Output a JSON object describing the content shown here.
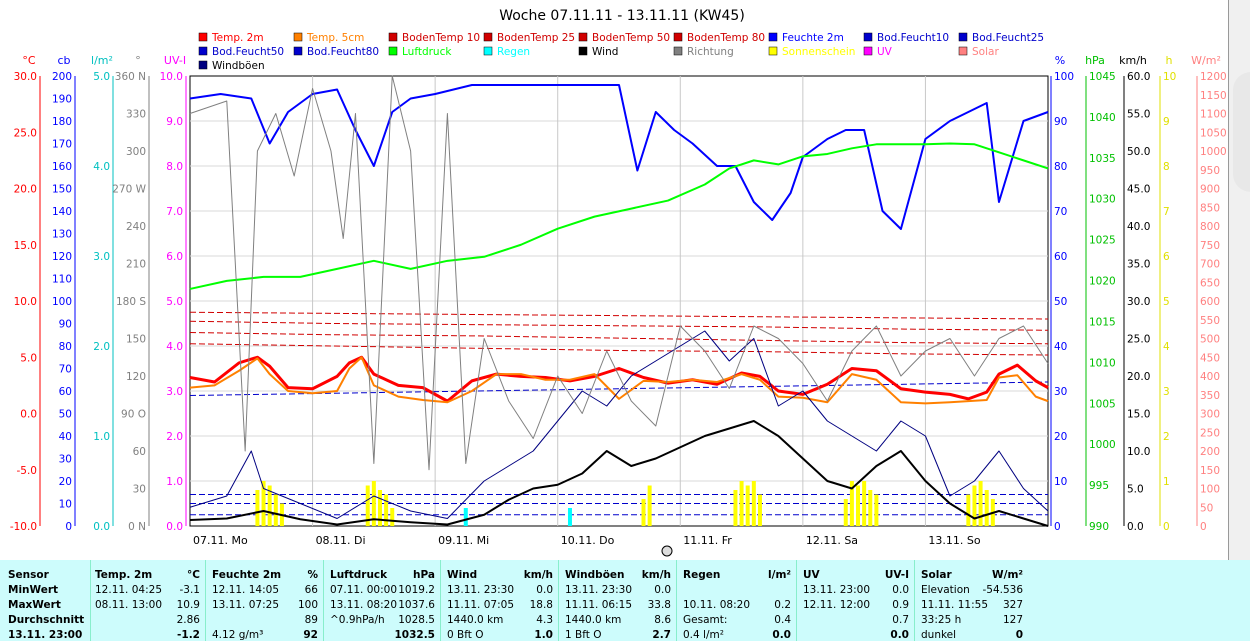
{
  "title": "Woche 07.11.11 - 13.11.11 (KW45)",
  "legend": [
    {
      "label": "Temp. 2m",
      "color": "#ff0000"
    },
    {
      "label": "Temp. 5cm",
      "color": "#ff8000"
    },
    {
      "label": "BodenTemp 10",
      "color": "#d00000"
    },
    {
      "label": "BodenTemp 25",
      "color": "#d00000"
    },
    {
      "label": "BodenTemp 50",
      "color": "#d00000"
    },
    {
      "label": "BodenTemp 80",
      "color": "#d00000"
    },
    {
      "label": "Feuchte 2m",
      "color": "#0000ff"
    },
    {
      "label": "Bod.Feucht10",
      "color": "#0000cc"
    },
    {
      "label": "Bod.Feucht25",
      "color": "#0000cc"
    },
    {
      "label": "Bod.Feucht50",
      "color": "#0000cc"
    },
    {
      "label": "Bod.Feucht80",
      "color": "#0000cc"
    },
    {
      "label": "Luftdruck",
      "color": "#00ff00"
    },
    {
      "label": "Regen",
      "color": "#00ffff"
    },
    {
      "label": "Wind",
      "color": "#000000"
    },
    {
      "label": "Richtung",
      "color": "#808080"
    },
    {
      "label": "Sonnenschein",
      "color": "#ffff00"
    },
    {
      "label": "UV",
      "color": "#ff00ff"
    },
    {
      "label": "Solar",
      "color": "#ff8080"
    },
    {
      "label": "Windböen",
      "color": "#000080"
    }
  ],
  "chart_data": {
    "type": "line",
    "title": "Woche 07.11.11 - 13.11.11 (KW45)",
    "x_categories": [
      "07.11. Mo",
      "08.11. Di",
      "09.11. Mi",
      "10.11. Do",
      "11.11. Fr",
      "12.11. Sa",
      "13.11. So"
    ],
    "axes": {
      "temp_c": {
        "unit": "°C",
        "min": -10,
        "max": 30,
        "ticks": [
          "30.0",
          "25.0",
          "20.0",
          "15.0",
          "10.0",
          "5.0",
          "0.0",
          "-5.0",
          "-10.0"
        ],
        "color": "#ff0000"
      },
      "cb": {
        "unit": "cb",
        "min": 0,
        "max": 200,
        "ticks": [
          "200",
          "190",
          "180",
          "170",
          "160",
          "150",
          "140",
          "130",
          "120",
          "110",
          "100",
          "90",
          "80",
          "70",
          "60",
          "50",
          "40",
          "30",
          "20",
          "10",
          "0"
        ],
        "color": "#0000ff"
      },
      "rain": {
        "unit": "l/m²",
        "min": 0,
        "max": 5,
        "ticks": [
          "5.0",
          "4.0",
          "3.0",
          "2.0",
          "1.0",
          "0.0"
        ],
        "color": "#00c0c0"
      },
      "direction": {
        "unit": "°",
        "min": 0,
        "max": 360,
        "ticks": [
          "360 N",
          "330",
          "300",
          "270 W",
          "240",
          "210",
          "180 S",
          "150",
          "120",
          "90 O",
          "60",
          "30",
          "0 N"
        ],
        "color": "#808080"
      },
      "uv": {
        "unit": "UV-I",
        "min": 0,
        "max": 10,
        "ticks": [
          "10.0",
          "9.0",
          "8.0",
          "7.0",
          "6.0",
          "5.0",
          "4.0",
          "3.0",
          "2.0",
          "1.0",
          "0.0"
        ],
        "color": "#ff00ff"
      },
      "humidity": {
        "unit": "%",
        "min": 0,
        "max": 100,
        "ticks": [
          "100",
          "90",
          "80",
          "70",
          "60",
          "50",
          "40",
          "30",
          "20",
          "10",
          "0"
        ],
        "color": "#0000ff"
      },
      "pressure": {
        "unit": "hPa",
        "min": 990,
        "max": 1046,
        "ticks": [
          "1045",
          "1040",
          "1035",
          "1030",
          "1025",
          "1020",
          "1015",
          "1010",
          "1005",
          "1000",
          "995",
          "990"
        ],
        "color": "#00c000"
      },
      "wind": {
        "unit": "km/h",
        "min": 0,
        "max": 60,
        "ticks": [
          "60.0",
          "55.0",
          "50.0",
          "45.0",
          "40.0",
          "35.0",
          "30.0",
          "25.0",
          "20.0",
          "15.0",
          "10.0",
          "5.0",
          "0.0"
        ],
        "color": "#000000"
      },
      "sun": {
        "unit": "h",
        "min": 0,
        "max": 10,
        "ticks": [
          "10",
          "9",
          "8",
          "7",
          "6",
          "5",
          "4",
          "3",
          "2",
          "1",
          "0"
        ],
        "color": "#e0e000"
      },
      "solar": {
        "unit": "W/m²",
        "min": 0,
        "max": 1200,
        "ticks": [
          "1200",
          "1150",
          "1100",
          "1050",
          "1000",
          "950",
          "900",
          "850",
          "800",
          "750",
          "700",
          "650",
          "600",
          "550",
          "500",
          "450",
          "400",
          "350",
          "300",
          "250",
          "200",
          "150",
          "100",
          "50",
          "0"
        ],
        "color": "#ff8080"
      }
    },
    "series": [
      {
        "name": "Temp. 2m",
        "axis": "temp_c",
        "color": "#ff0000",
        "width": 3,
        "x": [
          0,
          0.2,
          0.4,
          0.55,
          0.65,
          0.8,
          1.0,
          1.2,
          1.3,
          1.4,
          1.5,
          1.7,
          1.9,
          2.1,
          2.3,
          2.5,
          2.7,
          2.9,
          3.1,
          3.3,
          3.5,
          3.7,
          3.9,
          4.1,
          4.3,
          4.5,
          4.65,
          4.8,
          5.0,
          5.2,
          5.4,
          5.6,
          5.8,
          6.0,
          6.2,
          6.35,
          6.5,
          6.6,
          6.75,
          6.9,
          7.0
        ],
        "y": [
          3.2,
          2.8,
          4.5,
          5.0,
          4.2,
          2.3,
          2.2,
          3.3,
          4.5,
          5.0,
          3.5,
          2.5,
          2.3,
          1.1,
          2.9,
          3.5,
          3.3,
          3.2,
          2.9,
          3.3,
          4.0,
          3.2,
          2.7,
          3.0,
          2.6,
          3.6,
          3.3,
          2.0,
          1.7,
          2.6,
          4.0,
          3.8,
          2.2,
          1.9,
          1.7,
          1.3,
          1.9,
          3.5,
          4.3,
          2.9,
          2.3
        ]
      },
      {
        "name": "Temp. 5cm",
        "axis": "temp_c",
        "color": "#ff8000",
        "width": 2,
        "x": [
          0,
          0.2,
          0.4,
          0.55,
          0.65,
          0.8,
          1.0,
          1.2,
          1.3,
          1.4,
          1.5,
          1.7,
          1.9,
          2.1,
          2.3,
          2.5,
          2.7,
          2.9,
          3.1,
          3.3,
          3.5,
          3.7,
          3.9,
          4.1,
          4.3,
          4.5,
          4.65,
          4.8,
          5.0,
          5.2,
          5.4,
          5.6,
          5.8,
          6.0,
          6.2,
          6.35,
          6.5,
          6.6,
          6.75,
          6.9,
          7.0
        ],
        "y": [
          2.3,
          2.5,
          3.8,
          4.9,
          3.5,
          2.0,
          1.8,
          2.0,
          4.0,
          5.0,
          2.5,
          1.5,
          1.2,
          1.0,
          2.0,
          3.5,
          3.5,
          3.0,
          3.0,
          3.5,
          1.3,
          2.9,
          2.8,
          3.0,
          2.8,
          3.5,
          3.0,
          1.5,
          1.4,
          1.0,
          3.5,
          3.0,
          1.0,
          0.9,
          1.0,
          1.1,
          1.2,
          3.2,
          3.4,
          1.5,
          1.1
        ]
      },
      {
        "name": "Feuchte 2m",
        "axis": "humidity",
        "color": "#0000ff",
        "width": 2,
        "x": [
          0,
          0.25,
          0.5,
          0.65,
          0.8,
          1.0,
          1.2,
          1.35,
          1.5,
          1.65,
          1.8,
          2.0,
          2.3,
          2.6,
          2.9,
          3.2,
          3.5,
          3.65,
          3.8,
          3.95,
          4.1,
          4.3,
          4.45,
          4.6,
          4.75,
          4.9,
          5.0,
          5.1,
          5.2,
          5.35,
          5.5,
          5.65,
          5.8,
          6.0,
          6.2,
          6.35,
          6.5,
          6.6,
          6.8,
          7.0
        ],
        "y": [
          95,
          96,
          95,
          85,
          92,
          96,
          97,
          88,
          80,
          92,
          95,
          96,
          98,
          98,
          98,
          98,
          98,
          79,
          92,
          88,
          85,
          80,
          80,
          72,
          68,
          74,
          82,
          84,
          86,
          88,
          88,
          70,
          66,
          86,
          90,
          92,
          94,
          72,
          90,
          92
        ]
      },
      {
        "name": "Luftdruck",
        "axis": "pressure",
        "color": "#00ff00",
        "width": 2,
        "x": [
          0,
          0.3,
          0.6,
          0.9,
          1.2,
          1.5,
          1.8,
          2.1,
          2.4,
          2.7,
          3.0,
          3.3,
          3.6,
          3.9,
          4.2,
          4.4,
          4.6,
          4.8,
          5.0,
          5.2,
          5.4,
          5.6,
          5.8,
          6.0,
          6.2,
          6.4,
          6.6,
          6.8,
          7.0
        ],
        "y": [
          1019.5,
          1020.5,
          1021,
          1021,
          1022,
          1023,
          1022,
          1023,
          1023.5,
          1025,
          1027,
          1028.5,
          1029.5,
          1030.5,
          1032.5,
          1034.5,
          1035.5,
          1035,
          1036,
          1036.3,
          1037,
          1037.5,
          1037.5,
          1037.5,
          1037.6,
          1037.5,
          1036.5,
          1035.5,
          1034.5
        ]
      },
      {
        "name": "Wind",
        "axis": "wind",
        "color": "#000000",
        "width": 2,
        "x": [
          0,
          0.3,
          0.6,
          0.9,
          1.2,
          1.5,
          1.8,
          2.1,
          2.4,
          2.6,
          2.8,
          3.0,
          3.2,
          3.4,
          3.6,
          3.8,
          4.0,
          4.2,
          4.4,
          4.6,
          4.8,
          5.0,
          5.2,
          5.4,
          5.6,
          5.8,
          6.0,
          6.2,
          6.4,
          6.6,
          6.8,
          7.0
        ],
        "y": [
          0.8,
          1.0,
          2.0,
          0.9,
          0.2,
          0.9,
          0.5,
          0.2,
          1.5,
          3.5,
          5.0,
          5.5,
          7.0,
          10.0,
          8.0,
          9.0,
          10.5,
          12.0,
          13.0,
          14.0,
          12.0,
          9.0,
          6.0,
          5.0,
          8.0,
          10.0,
          6.0,
          3.0,
          1.0,
          2.0,
          1.0,
          0.0
        ]
      },
      {
        "name": "Windböen",
        "axis": "wind",
        "color": "#000080",
        "width": 1,
        "x": [
          0,
          0.3,
          0.5,
          0.6,
          0.9,
          1.2,
          1.5,
          1.8,
          2.1,
          2.4,
          2.6,
          2.8,
          3.0,
          3.2,
          3.4,
          3.6,
          3.8,
          4.0,
          4.2,
          4.4,
          4.6,
          4.8,
          5.0,
          5.2,
          5.4,
          5.6,
          5.8,
          6.0,
          6.2,
          6.4,
          6.6,
          6.8,
          7.0
        ],
        "y": [
          2.5,
          4.0,
          10.0,
          5.0,
          3.0,
          1.0,
          4.0,
          2.0,
          1.0,
          6.0,
          8.0,
          10.0,
          14.0,
          18.0,
          16.0,
          20.0,
          22.0,
          24.0,
          26.0,
          22.0,
          25.0,
          16.0,
          18.0,
          14.0,
          12.0,
          10.0,
          14.0,
          12.0,
          4.0,
          6.0,
          10.0,
          5.0,
          2.0
        ]
      },
      {
        "name": "Richtung",
        "axis": "direction",
        "color": "#808080",
        "width": 1,
        "x": [
          0,
          0.3,
          0.45,
          0.55,
          0.7,
          0.85,
          1.0,
          1.15,
          1.25,
          1.35,
          1.5,
          1.65,
          1.8,
          1.95,
          2.1,
          2.25,
          2.4,
          2.6,
          2.8,
          3.0,
          3.2,
          3.4,
          3.6,
          3.8,
          4.0,
          4.2,
          4.4,
          4.6,
          4.8,
          5.0,
          5.2,
          5.4,
          5.6,
          5.8,
          6.0,
          6.2,
          6.4,
          6.6,
          6.8,
          7.0
        ],
        "y": [
          330,
          340,
          60,
          300,
          330,
          280,
          350,
          300,
          230,
          330,
          50,
          360,
          300,
          45,
          330,
          50,
          150,
          100,
          70,
          120,
          90,
          140,
          100,
          80,
          160,
          140,
          110,
          160,
          150,
          130,
          100,
          140,
          160,
          120,
          140,
          150,
          120,
          150,
          160,
          130
        ]
      }
    ],
    "bars": [
      {
        "name": "Sonnenschein",
        "axis": "sun",
        "color": "#ffff00",
        "x": [
          0.55,
          0.6,
          0.65,
          0.7,
          0.75,
          1.45,
          1.5,
          1.55,
          1.6,
          1.65,
          3.7,
          3.75,
          4.45,
          4.5,
          4.55,
          4.6,
          4.65,
          5.35,
          5.4,
          5.45,
          5.5,
          5.55,
          5.6,
          6.35,
          6.4,
          6.45,
          6.5,
          6.55
        ],
        "y": [
          0.8,
          1.0,
          0.9,
          0.7,
          0.5,
          0.9,
          1.0,
          0.8,
          0.7,
          0.4,
          0.6,
          0.9,
          0.8,
          1.0,
          0.9,
          1.0,
          0.7,
          0.6,
          1.0,
          0.9,
          1.0,
          0.8,
          0.7,
          0.7,
          0.9,
          1.0,
          0.8,
          0.6
        ]
      },
      {
        "name": "Regen",
        "axis": "rain",
        "color": "#00ffff",
        "x": [
          2.25,
          3.1
        ],
        "y": [
          0.2,
          0.2
        ]
      }
    ],
    "reference_lines": [
      {
        "name": "BodenTemp 10",
        "axis": "temp_c",
        "color": "#d00000",
        "values": [
          6.2,
          6.0,
          5.8,
          5.6,
          5.5,
          5.3,
          5.2
        ]
      },
      {
        "name": "BodenTemp 25",
        "axis": "temp_c",
        "color": "#d00000",
        "values": [
          7.2,
          7.0,
          6.9,
          6.7,
          6.5,
          6.3,
          6.2
        ]
      },
      {
        "name": "BodenTemp 50",
        "axis": "temp_c",
        "color": "#d00000",
        "values": [
          8.2,
          8.0,
          7.9,
          7.8,
          7.7,
          7.5,
          7.4
        ]
      },
      {
        "name": "BodenTemp 80",
        "axis": "temp_c",
        "color": "#d00000",
        "values": [
          9.0,
          8.9,
          8.8,
          8.7,
          8.6,
          8.5,
          8.4
        ]
      },
      {
        "name": "Bod.Feucht10",
        "axis": "humidity",
        "color": "#0000cc",
        "values": [
          29,
          29.5,
          30,
          30.5,
          31,
          31.5,
          32
        ]
      },
      {
        "name": "Bod.Feucht25",
        "axis": "humidity",
        "color": "#0000cc",
        "values": [
          7,
          7,
          7,
          7,
          7,
          7,
          7
        ]
      },
      {
        "name": "Bod.Feucht50",
        "axis": "humidity",
        "color": "#0000cc",
        "values": [
          5,
          5,
          5,
          5,
          5,
          5,
          5
        ]
      },
      {
        "name": "Bod.Feucht80",
        "axis": "humidity",
        "color": "#0000cc",
        "values": [
          2.5,
          2.5,
          2.5,
          2.5,
          2.5,
          2.5,
          2.5
        ]
      }
    ]
  },
  "table": {
    "headers": {
      "sensor": "Sensor",
      "temp_name": "Temp. 2m",
      "temp_unit": "°C",
      "feuchte_name": "Feuchte 2m",
      "feuchte_unit": "%",
      "luft_name": "Luftdruck",
      "luft_unit": "hPa",
      "wind_name": "Wind",
      "wind_unit": "km/h",
      "boe_name": "Windböen",
      "boe_unit": "km/h",
      "regen_name": "Regen",
      "regen_unit": "l/m²",
      "uv_name": "UV",
      "uv_unit": "UV-I",
      "solar_name": "Solar",
      "solar_unit": "W/m²"
    },
    "rows": [
      {
        "label": "MinWert",
        "temp_t": "12.11. 04:25",
        "temp_v": "-3.1",
        "feu_t": "12.11. 14:05",
        "feu_v": "66",
        "luft_t": "07.11. 00:00",
        "luft_v": "1019.2",
        "wind_t": "13.11. 23:30",
        "wind_v": "0.0",
        "boe_t": "13.11. 23:30",
        "boe_v": "0.0",
        "reg_t": "",
        "reg_v": "",
        "uv_t": "13.11. 23:00",
        "uv_v": "0.0",
        "sol_t": "Elevation",
        "sol_v": "-54.536"
      },
      {
        "label": "MaxWert",
        "temp_t": "08.11. 13:00",
        "temp_v": "10.9",
        "feu_t": "13.11. 07:25",
        "feu_v": "100",
        "luft_t": "13.11. 08:20",
        "luft_v": "1037.6",
        "wind_t": "11.11. 07:05",
        "wind_v": "18.8",
        "boe_t": "11.11. 06:15",
        "boe_v": "33.8",
        "reg_t": "10.11. 08:20",
        "reg_v": "0.2",
        "uv_t": "12.11. 12:00",
        "uv_v": "0.9",
        "sol_t": "11.11. 11:55",
        "sol_v": "327"
      },
      {
        "label": "Durchschnitt",
        "temp_t": "",
        "temp_v": "2.86",
        "feu_t": "",
        "feu_v": "89",
        "luft_t": "^0.9hPa/h",
        "luft_v": "1028.5",
        "wind_t": "1440.0 km",
        "wind_v": "4.3",
        "boe_t": "1440.0 km",
        "boe_v": "8.6",
        "reg_t": "Gesamt:",
        "reg_v": "0.4",
        "uv_t": "",
        "uv_v": "0.7",
        "sol_t": "33:25 h",
        "sol_v": "127"
      },
      {
        "label": "13.11. 23:00",
        "temp_t": "",
        "temp_v": "-1.2",
        "feu_t": "4.12 g/m³",
        "feu_v": "92",
        "luft_t": "",
        "luft_v": "1032.5",
        "wind_t": "0 Bft O",
        "wind_v": "1.0",
        "boe_t": "1 Bft O",
        "boe_v": "2.7",
        "reg_t": "0.4 l/m²",
        "reg_v": "0.0",
        "uv_t": "",
        "uv_v": "0.0",
        "sol_t": "dunkel",
        "sol_v": "0"
      }
    ]
  }
}
